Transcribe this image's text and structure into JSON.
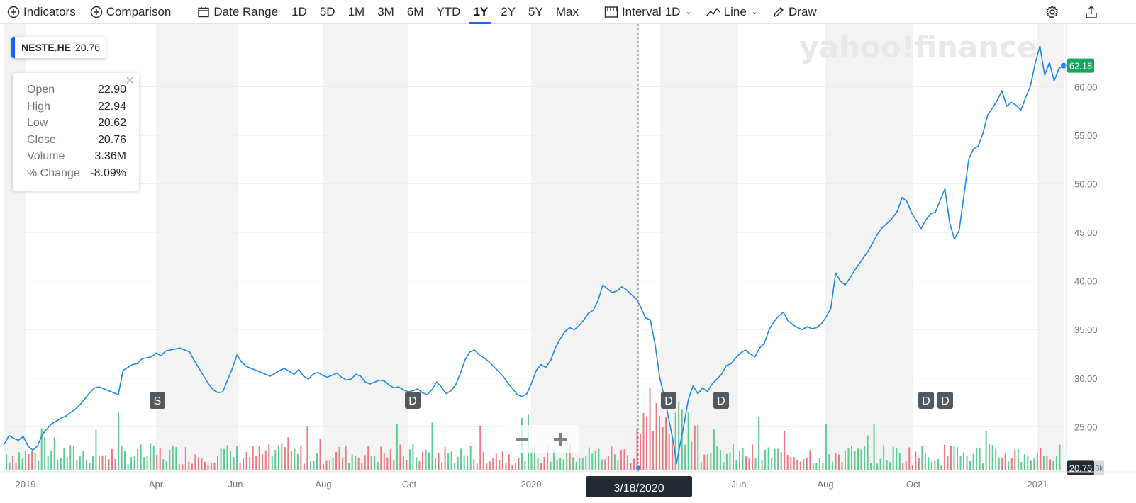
{
  "toolbar": {
    "indicators": "Indicators",
    "comparison": "Comparison",
    "date_range": "Date Range",
    "ranges": [
      "1D",
      "5D",
      "1M",
      "3M",
      "6M",
      "YTD",
      "1Y",
      "2Y",
      "5Y",
      "Max"
    ],
    "active_range": "1Y",
    "interval_label": "Interval",
    "interval_value": "1D",
    "chart_type": "Line",
    "draw": "Draw"
  },
  "symbol": {
    "ticker": "NESTE.HE",
    "price": "20.76"
  },
  "ohlc": {
    "rows": [
      {
        "label": "Open",
        "value": "22.90"
      },
      {
        "label": "High",
        "value": "22.94"
      },
      {
        "label": "Low",
        "value": "20.62"
      },
      {
        "label": "Close",
        "value": "20.76"
      },
      {
        "label": "Volume",
        "value": "3.36M"
      },
      {
        "label": "% Change",
        "value": "-8.09%"
      }
    ]
  },
  "watermark": "yahoo!finance",
  "colors": {
    "line": "#1e88e5",
    "vol_up": "#3ec47c",
    "vol_down": "#ef5f6b",
    "last_price_badge": "#13a860",
    "crosshair_badge": "#232a31",
    "shade": "#f3f3f4",
    "event_badge": "#505860"
  },
  "chart_data": {
    "type": "line",
    "y_ticks": [
      "25.00",
      "30.00",
      "35.00",
      "40.00",
      "45.00",
      "50.00",
      "55.00",
      "60.00"
    ],
    "ylim": [
      20.5,
      65
    ],
    "x_tick_labels": [
      "2019",
      "Apr",
      "Jun",
      "Aug",
      "Oct",
      "2020",
      "Jun",
      "Aug",
      "Oct",
      "2021"
    ],
    "crosshair_date": "3/18/2020",
    "crosshair_price": "20.76",
    "last_price": "62.18",
    "volume_axis_label": "3k",
    "event_markers": [
      "S",
      "D",
      "D",
      "D",
      "D",
      "D"
    ],
    "series": [
      {
        "points": [
          [
            0,
            23.2
          ],
          [
            2,
            24.1
          ],
          [
            4,
            23.8
          ],
          [
            6,
            23.6
          ],
          [
            8,
            24.0
          ],
          [
            10,
            23.0
          ],
          [
            12,
            22.6
          ],
          [
            14,
            23.0
          ],
          [
            16,
            24.2
          ],
          [
            18,
            24.8
          ],
          [
            20,
            25.3
          ],
          [
            22,
            25.6
          ],
          [
            24,
            25.9
          ],
          [
            26,
            26.1
          ],
          [
            28,
            26.5
          ],
          [
            30,
            26.8
          ],
          [
            32,
            27.3
          ],
          [
            34,
            27.9
          ],
          [
            36,
            28.5
          ],
          [
            38,
            29.0
          ],
          [
            40,
            29.1
          ],
          [
            42,
            28.9
          ],
          [
            44,
            28.7
          ],
          [
            46,
            28.5
          ],
          [
            48,
            28.3
          ],
          [
            50,
            30.8
          ],
          [
            52,
            31.1
          ],
          [
            54,
            31.4
          ],
          [
            56,
            31.5
          ],
          [
            58,
            32.0
          ],
          [
            60,
            32.1
          ],
          [
            62,
            32.2
          ],
          [
            64,
            32.6
          ],
          [
            66,
            32.3
          ],
          [
            68,
            32.8
          ],
          [
            70,
            32.9
          ],
          [
            72,
            33.0
          ],
          [
            74,
            33.1
          ],
          [
            76,
            32.9
          ],
          [
            78,
            32.7
          ],
          [
            80,
            31.8
          ],
          [
            82,
            31.0
          ],
          [
            84,
            30.2
          ],
          [
            86,
            29.4
          ],
          [
            88,
            28.8
          ],
          [
            90,
            28.5
          ],
          [
            92,
            28.6
          ],
          [
            94,
            29.8
          ],
          [
            96,
            31.0
          ],
          [
            98,
            32.4
          ],
          [
            100,
            31.6
          ],
          [
            102,
            31.2
          ],
          [
            104,
            31.0
          ],
          [
            106,
            30.8
          ],
          [
            108,
            30.6
          ],
          [
            110,
            30.4
          ],
          [
            112,
            30.2
          ],
          [
            114,
            30.5
          ],
          [
            116,
            30.8
          ],
          [
            118,
            31.0
          ],
          [
            120,
            30.7
          ],
          [
            122,
            30.4
          ],
          [
            124,
            30.9
          ],
          [
            126,
            30.2
          ],
          [
            128,
            29.9
          ],
          [
            130,
            30.4
          ],
          [
            132,
            30.6
          ],
          [
            134,
            30.3
          ],
          [
            136,
            30.1
          ],
          [
            138,
            30.3
          ],
          [
            140,
            30.5
          ],
          [
            142,
            30.1
          ],
          [
            144,
            29.8
          ],
          [
            146,
            29.9
          ],
          [
            148,
            30.4
          ],
          [
            150,
            30.2
          ],
          [
            152,
            29.6
          ],
          [
            154,
            29.4
          ],
          [
            156,
            29.6
          ],
          [
            158,
            29.8
          ],
          [
            160,
            29.7
          ],
          [
            162,
            29.3
          ],
          [
            164,
            29.0
          ],
          [
            166,
            29.1
          ],
          [
            168,
            28.8
          ],
          [
            170,
            28.6
          ],
          [
            172,
            28.7
          ],
          [
            174,
            28.9
          ],
          [
            176,
            28.5
          ],
          [
            178,
            28.3
          ],
          [
            180,
            28.8
          ],
          [
            182,
            29.6
          ],
          [
            184,
            29.1
          ],
          [
            186,
            28.4
          ],
          [
            188,
            28.7
          ],
          [
            190,
            29.3
          ],
          [
            192,
            30.5
          ],
          [
            194,
            31.9
          ],
          [
            196,
            32.7
          ],
          [
            198,
            32.9
          ],
          [
            200,
            32.4
          ],
          [
            202,
            32.1
          ],
          [
            204,
            31.7
          ],
          [
            206,
            31.2
          ],
          [
            208,
            30.7
          ],
          [
            210,
            30.2
          ],
          [
            212,
            29.5
          ],
          [
            214,
            28.9
          ],
          [
            216,
            28.3
          ],
          [
            218,
            28.1
          ],
          [
            220,
            28.4
          ],
          [
            222,
            29.5
          ],
          [
            224,
            30.8
          ],
          [
            226,
            31.4
          ],
          [
            228,
            31.1
          ],
          [
            230,
            31.8
          ],
          [
            232,
            33.1
          ],
          [
            234,
            34.0
          ],
          [
            236,
            34.8
          ],
          [
            238,
            35.2
          ],
          [
            240,
            35.0
          ],
          [
            242,
            35.4
          ],
          [
            244,
            36.0
          ],
          [
            246,
            36.7
          ],
          [
            248,
            37.0
          ],
          [
            250,
            38.0
          ],
          [
            252,
            39.6
          ],
          [
            254,
            39.2
          ],
          [
            256,
            38.8
          ],
          [
            258,
            39.0
          ],
          [
            260,
            39.4
          ],
          [
            262,
            39.1
          ],
          [
            264,
            38.6
          ],
          [
            266,
            38.2
          ],
          [
            268,
            37.3
          ],
          [
            270,
            36.2
          ],
          [
            272,
            36.0
          ],
          [
            274,
            33.5
          ],
          [
            276,
            30.0
          ],
          [
            278,
            28.0
          ],
          [
            280,
            25.5
          ],
          [
            282,
            23.0
          ],
          [
            283,
            21.2
          ],
          [
            284,
            22.5
          ],
          [
            286,
            25.0
          ],
          [
            288,
            27.8
          ],
          [
            290,
            29.2
          ],
          [
            292,
            28.4
          ],
          [
            294,
            29.0
          ],
          [
            296,
            28.6
          ],
          [
            298,
            29.4
          ],
          [
            300,
            29.9
          ],
          [
            302,
            30.4
          ],
          [
            304,
            31.3
          ],
          [
            306,
            31.5
          ],
          [
            308,
            32.1
          ],
          [
            310,
            32.6
          ],
          [
            312,
            32.9
          ],
          [
            314,
            32.5
          ],
          [
            316,
            32.2
          ],
          [
            318,
            33.1
          ],
          [
            320,
            33.6
          ],
          [
            322,
            35.0
          ],
          [
            324,
            35.8
          ],
          [
            326,
            36.4
          ],
          [
            328,
            36.8
          ],
          [
            330,
            35.9
          ],
          [
            332,
            35.5
          ],
          [
            334,
            35.2
          ],
          [
            336,
            35.0
          ],
          [
            338,
            35.3
          ],
          [
            340,
            35.1
          ],
          [
            342,
            35.2
          ],
          [
            344,
            35.6
          ],
          [
            346,
            36.3
          ],
          [
            348,
            37.2
          ],
          [
            350,
            40.8
          ],
          [
            352,
            40.0
          ],
          [
            354,
            39.6
          ],
          [
            356,
            40.3
          ],
          [
            358,
            41.1
          ],
          [
            360,
            41.8
          ],
          [
            362,
            42.5
          ],
          [
            364,
            43.2
          ],
          [
            366,
            44.1
          ],
          [
            368,
            45.0
          ],
          [
            370,
            45.6
          ],
          [
            372,
            46.0
          ],
          [
            374,
            46.5
          ],
          [
            376,
            47.2
          ],
          [
            378,
            48.6
          ],
          [
            380,
            48.2
          ],
          [
            382,
            47.0
          ],
          [
            384,
            46.2
          ],
          [
            386,
            45.4
          ],
          [
            388,
            46.3
          ],
          [
            390,
            46.9
          ],
          [
            392,
            47.1
          ],
          [
            394,
            48.3
          ],
          [
            396,
            49.5
          ],
          [
            398,
            46.0
          ],
          [
            400,
            44.3
          ],
          [
            402,
            45.2
          ],
          [
            404,
            48.8
          ],
          [
            406,
            52.5
          ],
          [
            408,
            53.6
          ],
          [
            410,
            53.9
          ],
          [
            412,
            55.2
          ],
          [
            414,
            57.1
          ],
          [
            416,
            57.8
          ],
          [
            418,
            58.6
          ],
          [
            420,
            59.6
          ],
          [
            422,
            58.0
          ],
          [
            424,
            58.4
          ],
          [
            426,
            58.1
          ],
          [
            428,
            57.6
          ],
          [
            430,
            58.9
          ],
          [
            432,
            60.1
          ],
          [
            434,
            62.4
          ],
          [
            436,
            64.2
          ],
          [
            438,
            61.2
          ],
          [
            440,
            62.5
          ],
          [
            442,
            60.6
          ],
          [
            444,
            61.9
          ],
          [
            446,
            62.18
          ]
        ]
      }
    ]
  }
}
